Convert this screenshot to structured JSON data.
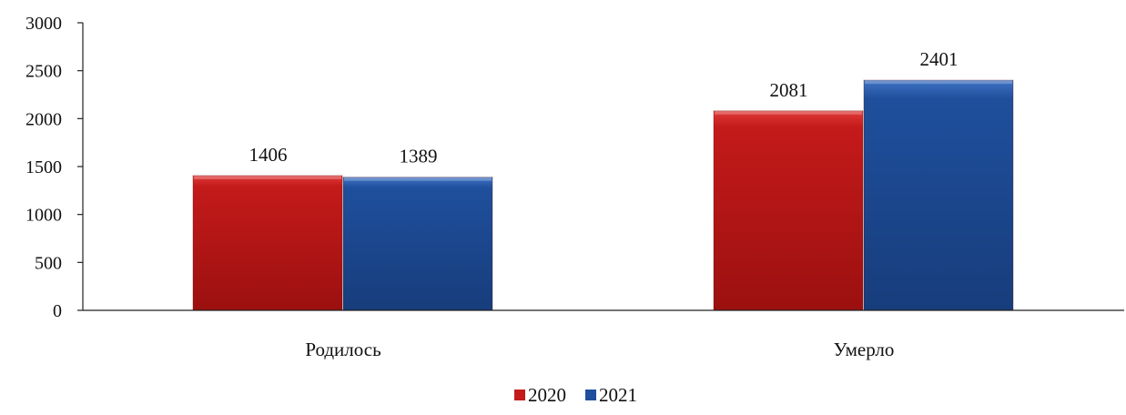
{
  "chart_data": {
    "type": "bar",
    "title": "",
    "xlabel": "",
    "ylabel": "",
    "categories": [
      "Родилось",
      "Умерло"
    ],
    "series": [
      {
        "name": "2020",
        "values": [
          1406,
          2081
        ],
        "color": "#c41a1a"
      },
      {
        "name": "2021",
        "values": [
          1389,
          2401
        ],
        "color": "#1f4f9c"
      }
    ],
    "ylim": [
      0,
      3000
    ],
    "yticks": [
      0,
      500,
      1000,
      1500,
      2000,
      2500,
      3000
    ],
    "grid": false,
    "legend_position": "bottom-center",
    "data_labels": true
  }
}
